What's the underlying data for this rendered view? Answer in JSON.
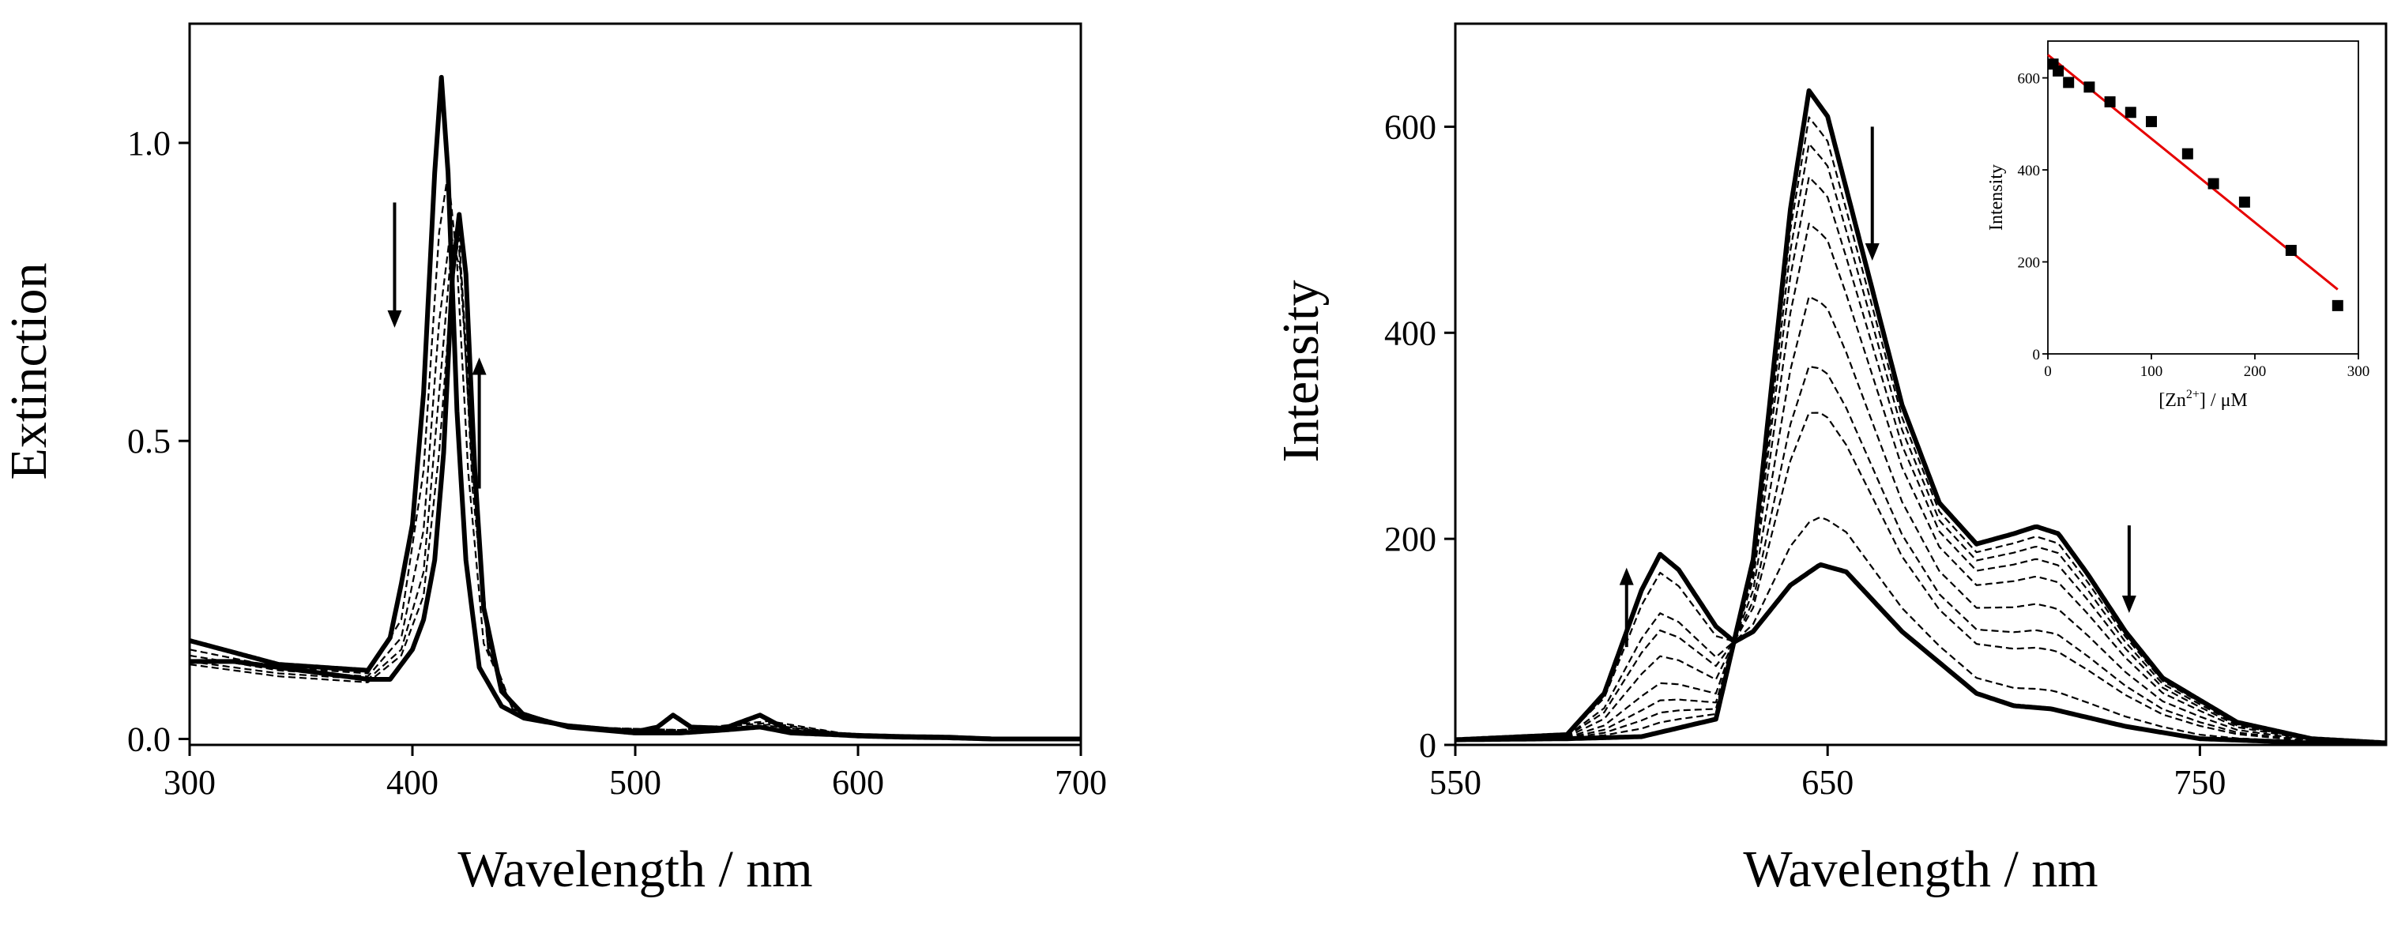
{
  "chart_data": [
    {
      "type": "line",
      "xlabel": "Wavelength / nm",
      "ylabel": "Extinction",
      "xlim": [
        300,
        700
      ],
      "ylim": [
        -0.01,
        1.2
      ],
      "xticks": [
        300,
        400,
        500,
        600,
        700
      ],
      "xtick_labels": [
        "300",
        "400",
        "500",
        "600",
        "700"
      ],
      "yticks": [
        0.0,
        0.5,
        1.0
      ],
      "ytick_labels": [
        "0.0",
        "0.5",
        "1.0"
      ],
      "grid": false,
      "legend": "none",
      "series_style": "first and last spectra bold solid; intermediate titration spectra thin dashed",
      "series": [
        {
          "style": "bold",
          "x": [
            300,
            320,
            340,
            360,
            380,
            390,
            395,
            400,
            405,
            410,
            413,
            416,
            420,
            424,
            430,
            440,
            450,
            470,
            500,
            510,
            517,
            525,
            540,
            556,
            570,
            590,
            600,
            620,
            640,
            660,
            700
          ],
          "y": [
            0.165,
            0.145,
            0.125,
            0.12,
            0.115,
            0.17,
            0.26,
            0.36,
            0.58,
            0.95,
            1.11,
            0.95,
            0.55,
            0.3,
            0.12,
            0.055,
            0.035,
            0.022,
            0.012,
            0.02,
            0.04,
            0.02,
            0.018,
            0.04,
            0.012,
            0.008,
            0.006,
            0.004,
            0.003,
            0.0,
            0.0
          ]
        },
        {
          "style": "dashed",
          "x": [
            300,
            340,
            380,
            395,
            405,
            412,
            416,
            420,
            425,
            432,
            445,
            470,
            520,
            560,
            600,
            700
          ],
          "y": [
            0.15,
            0.12,
            0.11,
            0.2,
            0.45,
            0.85,
            0.95,
            0.8,
            0.45,
            0.16,
            0.05,
            0.02,
            0.015,
            0.03,
            0.005,
            0.0
          ]
        },
        {
          "style": "dashed",
          "x": [
            300,
            340,
            380,
            395,
            405,
            412,
            417,
            422,
            427,
            434,
            445,
            470,
            520,
            560,
            600,
            700
          ],
          "y": [
            0.14,
            0.115,
            0.105,
            0.17,
            0.35,
            0.7,
            0.85,
            0.78,
            0.42,
            0.15,
            0.05,
            0.02,
            0.015,
            0.027,
            0.005,
            0.0
          ]
        },
        {
          "style": "dashed",
          "x": [
            300,
            340,
            380,
            395,
            405,
            412,
            417,
            421,
            427,
            434,
            445,
            470,
            520,
            560,
            600,
            700
          ],
          "y": [
            0.13,
            0.11,
            0.1,
            0.15,
            0.28,
            0.58,
            0.8,
            0.82,
            0.45,
            0.15,
            0.05,
            0.02,
            0.012,
            0.024,
            0.005,
            0.0
          ]
        },
        {
          "style": "dashed",
          "x": [
            300,
            340,
            380,
            395,
            405,
            412,
            418,
            421,
            427,
            434,
            445,
            470,
            520,
            560,
            600,
            700
          ],
          "y": [
            0.125,
            0.105,
            0.095,
            0.14,
            0.24,
            0.48,
            0.78,
            0.84,
            0.48,
            0.16,
            0.05,
            0.02,
            0.012,
            0.022,
            0.005,
            0.0
          ]
        },
        {
          "style": "bold",
          "x": [
            300,
            320,
            340,
            360,
            380,
            390,
            400,
            405,
            410,
            414,
            418,
            421,
            424,
            428,
            432,
            440,
            450,
            470,
            500,
            520,
            540,
            556,
            570,
            590,
            600,
            620,
            640,
            660,
            700
          ],
          "y": [
            0.13,
            0.13,
            0.12,
            0.11,
            0.1,
            0.1,
            0.15,
            0.2,
            0.3,
            0.48,
            0.78,
            0.88,
            0.78,
            0.45,
            0.22,
            0.08,
            0.04,
            0.02,
            0.01,
            0.01,
            0.015,
            0.02,
            0.01,
            0.007,
            0.005,
            0.003,
            0.002,
            0.0,
            0.0
          ]
        }
      ],
      "annotations": [
        {
          "type": "arrow-down",
          "x": 392,
          "y_from": 0.9,
          "y_to": 0.69
        },
        {
          "type": "arrow-up",
          "x": 430,
          "y_from": 0.42,
          "y_to": 0.64
        }
      ]
    },
    {
      "type": "line",
      "xlabel": "Wavelength / nm",
      "ylabel": "Intensity",
      "xlim": [
        550,
        800
      ],
      "ylim": [
        0,
        700
      ],
      "xticks": [
        550,
        650,
        750
      ],
      "xtick_labels": [
        "550",
        "650",
        "750"
      ],
      "yticks": [
        0,
        200,
        400,
        600
      ],
      "ytick_labels": [
        "0",
        "200",
        "400",
        "600"
      ],
      "grid": false,
      "legend": "none",
      "series_style": "first and last spectra bold solid; intermediate titration spectra thin dashed",
      "series": [
        {
          "style": "bold",
          "scale": 1.0,
          "x": [
            550,
            580,
            600,
            620,
            630,
            640,
            645,
            650,
            660,
            670,
            680,
            690,
            700,
            706,
            712,
            720,
            730,
            740,
            760,
            780,
            800
          ],
          "y": [
            5,
            6,
            8,
            25,
            180,
            520,
            635,
            610,
            470,
            330,
            235,
            195,
            205,
            212,
            205,
            165,
            110,
            65,
            22,
            6,
            2
          ]
        },
        {
          "style": "dashed",
          "scale": 0.96
        },
        {
          "style": "dashed",
          "scale": 0.92
        },
        {
          "style": "dashed",
          "scale": 0.87
        },
        {
          "style": "dashed",
          "scale": 0.8
        },
        {
          "style": "dashed",
          "scale": 0.69
        },
        {
          "style": "dashed",
          "scale": 0.585
        },
        {
          "style": "dashed",
          "scale": 0.515
        },
        {
          "style": "dashed",
          "scale": 0.35
        },
        {
          "style": "bold",
          "scale": 0.275,
          "x": [
            550,
            580,
            590,
            600,
            605,
            610,
            620,
            625,
            630,
            640,
            648,
            655,
            670,
            690,
            700,
            710,
            730,
            750,
            780,
            800
          ],
          "y": [
            5,
            10,
            50,
            150,
            185,
            170,
            115,
            100,
            110,
            155,
            175,
            168,
            110,
            50,
            38,
            35,
            18,
            6,
            2,
            1
          ]
        }
      ],
      "annotations": [
        {
          "type": "arrow-down",
          "x": 662,
          "y_from": 600,
          "y_to": 470
        },
        {
          "type": "arrow-down",
          "x": 731,
          "y_from": 213,
          "y_to": 128
        },
        {
          "type": "arrow-up",
          "x": 596,
          "y_from": 95,
          "y_to": 172
        }
      ],
      "inset": {
        "type": "scatter",
        "xlabel_prefix": "[Zn",
        "xlabel_sup": "2+",
        "xlabel_suffix": "] / μM",
        "ylabel": "Intensity",
        "xlim": [
          0,
          300
        ],
        "ylim": [
          0,
          680
        ],
        "xticks": [
          0,
          100,
          200,
          300
        ],
        "xtick_labels": [
          "0",
          "100",
          "200",
          "300"
        ],
        "yticks": [
          0,
          200,
          400,
          600
        ],
        "ytick_labels": [
          "0",
          "200",
          "400",
          "600"
        ],
        "points_x": [
          5,
          10,
          20,
          40,
          60,
          80,
          100,
          135,
          160,
          190,
          235,
          280
        ],
        "points_y": [
          630,
          615,
          590,
          580,
          548,
          525,
          505,
          435,
          370,
          330,
          225,
          105
        ],
        "fit_line": {
          "x": [
            0,
            280
          ],
          "y": [
            650,
            140
          ],
          "color": "#e60000"
        },
        "marker_color": "#000000"
      }
    }
  ]
}
